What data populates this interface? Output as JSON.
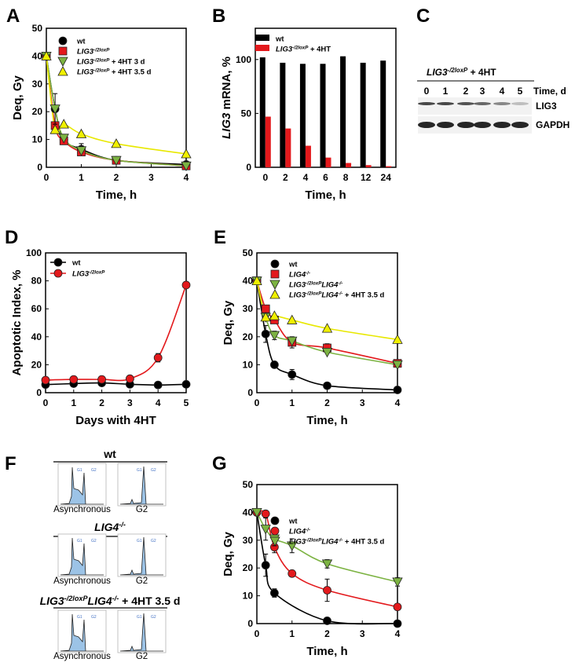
{
  "colors": {
    "wt": "#000000",
    "red": "#e3191c",
    "green": "#7cb342",
    "yellow": "#f0f000",
    "hist": "#9cc3e6"
  },
  "panel_letters": {
    "A": "A",
    "B": "B",
    "C": "C",
    "D": "D",
    "E": "E",
    "F": "F",
    "G": "G"
  },
  "chart_data": [
    {
      "id": "A",
      "type": "scatter-line",
      "xlabel": "Time, h",
      "ylabel": "Deq, Gy",
      "xlim": [
        0,
        4
      ],
      "ylim": [
        0,
        50
      ],
      "xticks": [
        "0",
        "1",
        "2",
        "3",
        "4"
      ],
      "yticks": [
        "0",
        "10",
        "20",
        "30",
        "40",
        "50"
      ],
      "legend_position": "top-right",
      "series": [
        {
          "name": [
            {
              "t": "wt"
            }
          ],
          "marker": "circle",
          "color": "wt",
          "x": [
            0,
            0.25,
            0.5,
            1,
            2,
            4
          ],
          "y": [
            40,
            21,
            10,
            6.5,
            2.5,
            1
          ],
          "err": [
            0,
            0,
            0,
            2,
            0,
            0
          ]
        },
        {
          "name": [
            {
              "t": "LIG3",
              "i": true
            },
            {
              "t": "-/2loxP",
              "i": true,
              "sup": true
            }
          ],
          "marker": "square",
          "color": "red",
          "x": [
            0,
            0.25,
            0.5,
            1,
            2,
            4
          ],
          "y": [
            40,
            15,
            9.5,
            5.5,
            2.5,
            0.5
          ],
          "err": [
            0,
            0,
            0,
            0,
            0,
            0
          ]
        },
        {
          "name": [
            {
              "t": "LIG3",
              "i": true
            },
            {
              "t": "-/2loxP",
              "i": true,
              "sup": true
            },
            {
              "t": " + 4HT 3 d"
            }
          ],
          "marker": "triangle-down",
          "color": "green",
          "x": [
            0,
            0.25,
            0.5,
            1,
            2,
            4
          ],
          "y": [
            40,
            21,
            10.5,
            6,
            2.5,
            0.5
          ],
          "err": [
            0,
            5.5,
            0,
            0,
            0,
            0
          ]
        },
        {
          "name": [
            {
              "t": "LIG3",
              "i": true
            },
            {
              "t": "-/2loxP",
              "i": true,
              "sup": true
            },
            {
              "t": " + 4HT 3.5 d"
            }
          ],
          "marker": "triangle-up",
          "color": "yellow",
          "x": [
            0,
            0.25,
            0.5,
            1,
            2,
            4
          ],
          "y": [
            40,
            13.5,
            15.5,
            12,
            8.5,
            4.8
          ],
          "err": [
            0,
            0,
            0,
            0,
            0,
            0
          ]
        }
      ]
    },
    {
      "id": "B",
      "type": "bar",
      "xlabel": "Time, h",
      "ylabel": [
        {
          "t": "LIG3",
          "i": true
        },
        {
          "t": " mRNA, %"
        }
      ],
      "ylim": [
        0,
        129
      ],
      "categories": [
        "0",
        "2",
        "4",
        "6",
        "8",
        "12",
        "24"
      ],
      "yticks": [
        "0",
        "50",
        "100"
      ],
      "legend_position": "top-left",
      "series": [
        {
          "name": [
            {
              "t": "wt"
            }
          ],
          "color": "wt",
          "values": [
            102,
            97,
            96,
            96,
            103,
            97,
            99
          ]
        },
        {
          "name": [
            {
              "t": "LIG3",
              "i": true
            },
            {
              "t": "-/2loxP",
              "i": true,
              "sup": true
            },
            {
              "t": " + 4HT"
            }
          ],
          "color": "red",
          "values": [
            47,
            36,
            20,
            9,
            4,
            2,
            1
          ]
        }
      ]
    },
    {
      "id": "D",
      "type": "line",
      "xlabel": "Days with 4HT",
      "ylabel": "Apoptotic Index, %",
      "xlim": [
        0,
        5
      ],
      "ylim": [
        0,
        100
      ],
      "xticks": [
        "0",
        "1",
        "2",
        "3",
        "4",
        "5"
      ],
      "yticks": [
        "0",
        "20",
        "40",
        "60",
        "80",
        "100"
      ],
      "legend_position": "top-left",
      "series": [
        {
          "name": [
            {
              "t": "wt"
            }
          ],
          "marker": "circle",
          "color": "wt",
          "x": [
            0,
            1,
            2,
            3,
            4,
            5
          ],
          "y": [
            5.8,
            6.5,
            7,
            6,
            5.5,
            6
          ],
          "err": [
            0,
            0,
            0,
            0,
            0,
            0
          ]
        },
        {
          "name": [
            {
              "t": "LIG3",
              "i": true
            },
            {
              "t": "-/2loxP",
              "i": true,
              "sup": true
            }
          ],
          "marker": "circle",
          "color": "red",
          "x": [
            0,
            1,
            2,
            3,
            4,
            5
          ],
          "y": [
            9,
            9.5,
            9.5,
            10,
            25,
            77
          ],
          "err": [
            0,
            0,
            0,
            0,
            3,
            0
          ]
        }
      ]
    },
    {
      "id": "E",
      "type": "scatter-line",
      "xlabel": "Time, h",
      "ylabel": "Deq, Gy",
      "xlim": [
        0,
        4
      ],
      "ylim": [
        0,
        50
      ],
      "xticks": [
        "0",
        "1",
        "2",
        "3",
        "4"
      ],
      "yticks": [
        "0",
        "10",
        "20",
        "30",
        "40",
        "50"
      ],
      "legend_position": "top-right",
      "series": [
        {
          "name": [
            {
              "t": "wt"
            }
          ],
          "marker": "circle",
          "color": "wt",
          "x": [
            0,
            0.25,
            0.5,
            1,
            2,
            4
          ],
          "y": [
            40,
            21,
            10,
            6.5,
            2.5,
            1
          ],
          "err": [
            0,
            3,
            0,
            1.8,
            0,
            0
          ]
        },
        {
          "name": [
            {
              "t": "LIG4",
              "i": true
            },
            {
              "t": "-/-",
              "i": true,
              "sup": true
            }
          ],
          "marker": "square",
          "color": "red",
          "x": [
            0,
            0.25,
            0.5,
            1,
            2,
            4
          ],
          "y": [
            40,
            30,
            26,
            18,
            16,
            10.5
          ],
          "err": [
            0,
            0,
            0,
            2,
            1.5,
            0
          ]
        },
        {
          "name": [
            {
              "t": "LIG3",
              "i": true
            },
            {
              "t": "-/2loxP",
              "i": true,
              "sup": true
            },
            {
              "t": "LIG4",
              "i": true
            },
            {
              "t": "-/-",
              "i": true,
              "sup": true
            }
          ],
          "marker": "triangle-down",
          "color": "green",
          "x": [
            0,
            0.25,
            0.5,
            1,
            2,
            4
          ],
          "y": [
            40,
            27,
            20.5,
            18.5,
            14.5,
            10
          ],
          "err": [
            0,
            0,
            1.5,
            0,
            0,
            0
          ]
        },
        {
          "name": [
            {
              "t": "LIG3",
              "i": true
            },
            {
              "t": "-/2loxP",
              "i": true,
              "sup": true
            },
            {
              "t": "LIG4",
              "i": true
            },
            {
              "t": "-/-",
              "i": true,
              "sup": true
            },
            {
              "t": " + 4HT 3.5 d"
            }
          ],
          "marker": "triangle-up",
          "color": "yellow",
          "x": [
            0,
            0.25,
            0.5,
            1,
            2,
            4
          ],
          "y": [
            40,
            27,
            27.5,
            26,
            23,
            19
          ],
          "err": [
            0,
            0,
            0,
            0,
            0,
            0
          ]
        }
      ]
    },
    {
      "id": "G",
      "type": "scatter-line",
      "xlabel": "Time, h",
      "ylabel": "Deq, Gy",
      "xlim": [
        0,
        4
      ],
      "ylim": [
        0,
        50
      ],
      "xticks": [
        "0",
        "1",
        "2",
        "3",
        "4"
      ],
      "yticks": [
        "0",
        "10",
        "20",
        "30",
        "40",
        "50"
      ],
      "legend_position": "top-right",
      "series": [
        {
          "name": [
            {
              "t": "wt"
            }
          ],
          "marker": "circle",
          "color": "wt",
          "x": [
            0,
            0.25,
            0.5,
            2,
            4
          ],
          "y": [
            40,
            21,
            11,
            1,
            0
          ],
          "err": [
            0,
            4,
            1.5,
            0,
            0
          ]
        },
        {
          "name": [
            {
              "t": "LIG4",
              "i": true
            },
            {
              "t": "-/-",
              "i": true,
              "sup": true
            }
          ],
          "marker": "circle",
          "color": "red",
          "x": [
            0,
            0.25,
            0.5,
            1,
            2,
            4
          ],
          "y": [
            40,
            39.5,
            27.5,
            18,
            12,
            6
          ],
          "err": [
            0,
            0,
            2,
            0,
            4,
            0
          ]
        },
        {
          "name": [
            {
              "t": "LIG3",
              "i": true
            },
            {
              "t": "-/2loxP",
              "i": true,
              "sup": true
            },
            {
              "t": "LIG4",
              "i": true
            },
            {
              "t": "-/-",
              "i": true,
              "sup": true
            },
            {
              "t": " + 4HT 3.5 d"
            }
          ],
          "marker": "triangle-down",
          "color": "green",
          "x": [
            0,
            0.25,
            0.5,
            1,
            2,
            4
          ],
          "y": [
            40,
            34,
            30.5,
            28,
            21.5,
            15
          ],
          "err": [
            0,
            4,
            2.5,
            2.5,
            1.5,
            1.5
          ]
        }
      ]
    }
  ],
  "blot": {
    "title": [
      {
        "t": "LIG3",
        "i": true
      },
      {
        "t": "-/2loxP",
        "i": true,
        "sup": true
      },
      {
        "t": " + 4HT"
      }
    ],
    "lanes": [
      "0",
      "1",
      "2",
      "3",
      "4",
      "5"
    ],
    "lane_axis_label": "Time, d",
    "rows": [
      {
        "label": "LIG3",
        "intensity": [
          0.85,
          0.85,
          0.8,
          0.7,
          0.55,
          0.3
        ]
      },
      {
        "label": "GAPDH",
        "intensity": [
          1,
          1,
          1,
          1,
          1,
          1
        ]
      }
    ]
  },
  "facs": {
    "groups": [
      {
        "title": [
          {
            "t": "wt",
            "b": true
          }
        ],
        "panels": [
          "Asynchronous",
          "G2"
        ]
      },
      {
        "title": [
          {
            "t": "LIG4",
            "i": true
          },
          {
            "t": "-/-",
            "i": true,
            "sup": true
          }
        ],
        "panels": [
          "Asynchronous",
          "G2"
        ]
      },
      {
        "title": [
          {
            "t": "LIG3",
            "i": true
          },
          {
            "t": "-/2loxP",
            "i": true,
            "sup": true
          },
          {
            "t": "LIG4",
            "i": true
          },
          {
            "t": "-/-",
            "i": true,
            "sup": true
          },
          {
            "t": " + 4HT 3.5 d"
          }
        ],
        "panels": [
          "Asynchronous",
          "G2"
        ]
      }
    ],
    "gate_labels": [
      "G1",
      "G2"
    ]
  }
}
